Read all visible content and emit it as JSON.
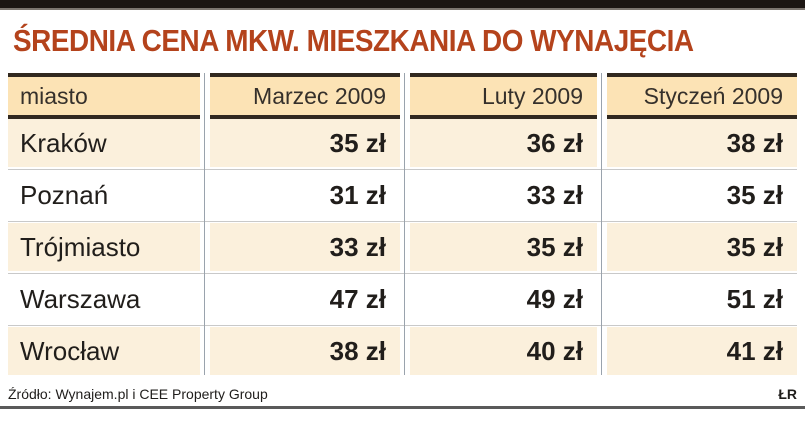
{
  "title": "ŚREDNIA CENA MKW. MIESZKANIA DO WYNAJĘCIA",
  "table": {
    "columns": [
      "miasto",
      "Marzec 2009",
      "Luty 2009",
      "Styczeń 2009"
    ],
    "rows": [
      {
        "city": "Kraków",
        "marzec": "35 zł",
        "luty": "36 zł",
        "styczen": "38 zł"
      },
      {
        "city": "Poznań",
        "marzec": "31 zł",
        "luty": "33 zł",
        "styczen": "35 zł"
      },
      {
        "city": "Trójmiasto",
        "marzec": "33 zł",
        "luty": "35 zł",
        "styczen": "35 zł"
      },
      {
        "city": "Warszawa",
        "marzec": "47 zł",
        "luty": "49 zł",
        "styczen": "51 zł"
      },
      {
        "city": "Wrocław",
        "marzec": "38 zł",
        "luty": "40 zł",
        "styczen": "41 zł"
      }
    ]
  },
  "footer": {
    "source": "Źródło: Wynajem.pl i CEE Property Group",
    "credit": "ŁR"
  },
  "colors": {
    "title_red": "#b4431c",
    "highlight_red": "#b5481f",
    "header_bg": "#fce3b5",
    "row_cream": "#fbf0dc",
    "dark_rule": "#31281f",
    "divider_gray": "#9aa3ad",
    "top_bar": "#1c1613"
  },
  "chart_data": {
    "type": "table",
    "title": "ŚREDNIA CENA MKW. MIESZKANIA DO WYNAJĘCIA",
    "columns": [
      "miasto",
      "Marzec 2009",
      "Luty 2009",
      "Styczeń 2009"
    ],
    "rows": [
      [
        "Kraków",
        "35 zł",
        "36 zł",
        "38 zł"
      ],
      [
        "Poznań",
        "31 zł",
        "33 zł",
        "35 zł"
      ],
      [
        "Trójmiasto",
        "33 zł",
        "35 zł",
        "35 zł"
      ],
      [
        "Warszawa",
        "47 zł",
        "49 zł",
        "51 zł"
      ],
      [
        "Wrocław",
        "38 zł",
        "40 zł",
        "41 zł"
      ]
    ],
    "values_numeric": {
      "Marzec 2009": [
        35,
        31,
        33,
        47,
        38
      ],
      "Luty 2009": [
        36,
        33,
        35,
        49,
        40
      ],
      "Styczeń 2009": [
        38,
        35,
        35,
        51,
        41
      ]
    },
    "unit": "zł",
    "source": "Źródło: Wynajem.pl i CEE Property Group",
    "highlight_column": "Styczeń 2009"
  }
}
